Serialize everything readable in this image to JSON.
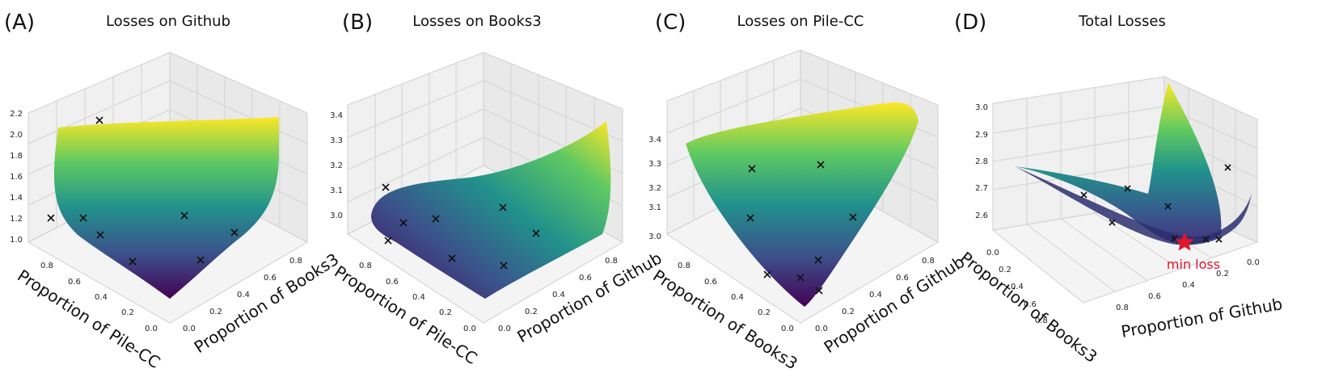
{
  "chart_data": [
    {
      "type": "surface",
      "panel": "(A)",
      "title": "Losses on Github",
      "xlabel": "Proportion of Pile-CC",
      "ylabel": "Proportion of Books3",
      "zlim": [
        1.0,
        2.3
      ],
      "z_ticks": [
        "1.0",
        "1.2",
        "1.4",
        "1.6",
        "1.8",
        "2.0",
        "2.2"
      ],
      "x_ticks": [
        "0.8",
        "0.6",
        "0.4",
        "0.2",
        "0.0"
      ],
      "y_ticks": [
        "0.0",
        "0.2",
        "0.4",
        "0.6",
        "0.8"
      ],
      "colormap": "viridis",
      "points": [
        {
          "x": 0.05,
          "y": 0.05,
          "z": 2.27
        },
        {
          "x": 0.85,
          "y": 0.05,
          "z": 1.22
        },
        {
          "x": 0.6,
          "y": 0.2,
          "z": 1.22
        },
        {
          "x": 0.5,
          "y": 0.1,
          "z": 1.1
        },
        {
          "x": 0.3,
          "y": 0.1,
          "z": 1.0
        },
        {
          "x": 0.15,
          "y": 0.55,
          "z": 1.15
        },
        {
          "x": 0.1,
          "y": 0.8,
          "z": 1.15
        },
        {
          "x": 0.05,
          "y": 0.35,
          "z": 1.05
        }
      ]
    },
    {
      "type": "surface",
      "panel": "(B)",
      "title": "Losses on Books3",
      "xlabel": "Proportion of Pile-CC",
      "ylabel": "Proportion of Github",
      "zlim": [
        2.9,
        3.45
      ],
      "z_ticks": [
        "3.0",
        "3.1",
        "3.2",
        "3.3",
        "3.4"
      ],
      "x_ticks": [
        "0.8",
        "0.6",
        "0.4",
        "0.2",
        "0.0"
      ],
      "y_ticks": [
        "0.0",
        "0.2",
        "0.4",
        "0.6",
        "0.8"
      ],
      "colormap": "viridis",
      "points": [
        {
          "x": 0.85,
          "y": 0.05,
          "z": 3.15
        },
        {
          "x": 0.75,
          "y": 0.1,
          "z": 3.0
        },
        {
          "x": 0.6,
          "y": 0.2,
          "z": 3.05
        },
        {
          "x": 0.5,
          "y": 0.05,
          "z": 2.95
        },
        {
          "x": 0.4,
          "y": 0.2,
          "z": 2.95
        },
        {
          "x": 0.2,
          "y": 0.6,
          "z": 3.05
        },
        {
          "x": 0.1,
          "y": 0.8,
          "z": 3.0
        },
        {
          "x": 0.05,
          "y": 0.35,
          "z": 2.95
        }
      ]
    },
    {
      "type": "surface",
      "panel": "(C)",
      "title": "Losses on Pile-CC",
      "xlabel": "Proportion of Books3",
      "ylabel": "Proportion of Github",
      "zlim": [
        2.95,
        3.45
      ],
      "z_ticks": [
        "3.0",
        "3.1",
        "3.2",
        "3.3",
        "3.4"
      ],
      "x_ticks": [
        "0.8",
        "0.6",
        "0.4",
        "0.2",
        "0.0"
      ],
      "y_ticks": [
        "0.0",
        "0.2",
        "0.4",
        "0.6",
        "0.8"
      ],
      "colormap": "viridis",
      "points": [
        {
          "x": 0.4,
          "y": 0.4,
          "z": 3.25
        },
        {
          "x": 0.2,
          "y": 0.6,
          "z": 3.25
        },
        {
          "x": 0.5,
          "y": 0.2,
          "z": 3.1
        },
        {
          "x": 0.1,
          "y": 0.85,
          "z": 3.1
        },
        {
          "x": 0.4,
          "y": 0.05,
          "z": 2.98
        },
        {
          "x": 0.15,
          "y": 0.25,
          "z": 2.98
        },
        {
          "x": 0.05,
          "y": 0.1,
          "z": 2.95
        },
        {
          "x": 0.02,
          "y": 0.05,
          "z": 2.95
        }
      ]
    },
    {
      "type": "surface",
      "panel": "(D)",
      "title": "Total Losses",
      "xlabel": "Proportion of Books3",
      "ylabel": "Proportion of Github",
      "zlim": [
        2.5,
        3.05
      ],
      "z_ticks": [
        "2.6",
        "2.7",
        "2.8",
        "2.9",
        "3.0"
      ],
      "x_ticks": [
        "0.0",
        "0.2",
        "0.4",
        "0.6",
        "0.8"
      ],
      "y_ticks": [
        "0.8",
        "0.6",
        "0.4",
        "0.2",
        "0.0"
      ],
      "colormap": "viridis",
      "annotation": {
        "text": "min loss",
        "marker": "star",
        "color": "#e0162b"
      },
      "points": [
        {
          "x": 0.3,
          "y": 0.85,
          "z": 2.75
        },
        {
          "x": 0.1,
          "y": 0.7,
          "z": 2.75
        },
        {
          "x": 0.5,
          "y": 0.6,
          "z": 2.6
        },
        {
          "x": 0.4,
          "y": 0.35,
          "z": 2.55
        },
        {
          "x": 0.35,
          "y": 0.25,
          "z": 2.55
        },
        {
          "x": 0.3,
          "y": 0.2,
          "z": 2.55
        },
        {
          "x": 0.2,
          "y": 0.1,
          "z": 2.55
        },
        {
          "x": 0.05,
          "y": 0.05,
          "z": 2.75
        }
      ]
    }
  ]
}
